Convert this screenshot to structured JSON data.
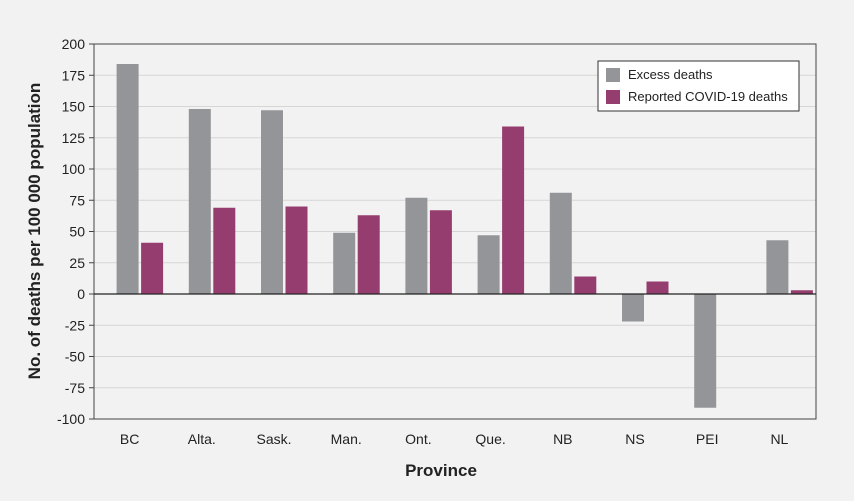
{
  "chart_data": {
    "type": "bar",
    "xlabel": "Province",
    "ylabel": "No. of deaths per 100 000 population",
    "ylim": [
      -100,
      200
    ],
    "yticks": [
      200,
      175,
      150,
      125,
      100,
      75,
      50,
      25,
      0,
      -25,
      -50,
      -75,
      -100
    ],
    "grid": true,
    "legend_position": "top-right",
    "categories": [
      "BC",
      "Alta.",
      "Sask.",
      "Man.",
      "Ont.",
      "Que.",
      "NB",
      "NS",
      "PEI",
      "NL"
    ],
    "series": [
      {
        "name": "Excess deaths",
        "color": "#939598",
        "values": [
          184,
          148,
          147,
          49,
          77,
          47,
          81,
          -22,
          -91,
          43
        ]
      },
      {
        "name": "Reported COVID-19 deaths",
        "color": "#943d6e",
        "values": [
          41,
          69,
          70,
          63,
          67,
          134,
          14,
          10,
          0,
          3
        ]
      }
    ]
  }
}
